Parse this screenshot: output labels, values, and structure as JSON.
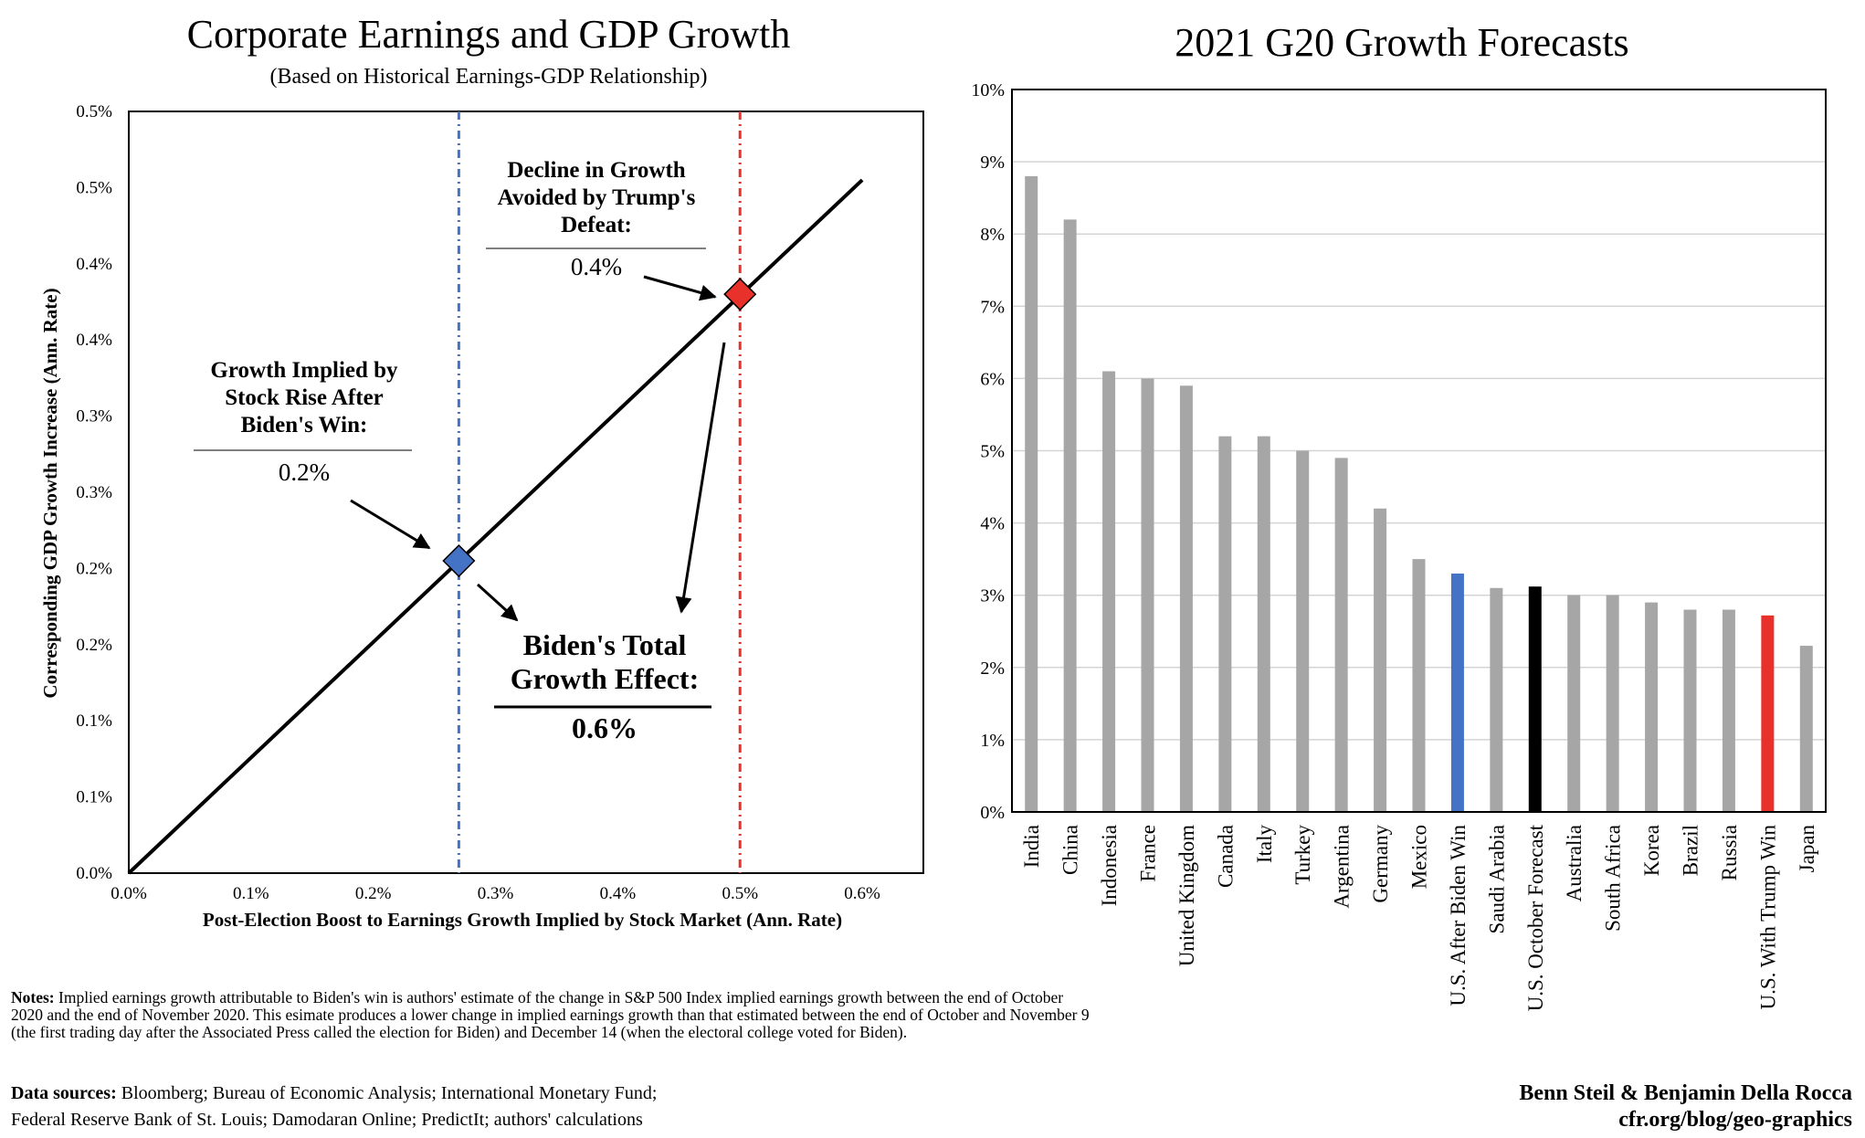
{
  "chart_data": [
    {
      "type": "line",
      "title": "Corporate Earnings and GDP Growth",
      "subtitle": "(Based on Historical Earnings-GDP Relationship)",
      "xlabel": "Post-Election Boost to Earnings Growth Implied by Stock Market (Ann. Rate)",
      "ylabel": "Corresponding GDP Growth Increase (Ann. Rate)",
      "xlim": [
        0,
        0.65
      ],
      "ylim": [
        0,
        0.5
      ],
      "x_ticks": [
        0,
        0.1,
        0.2,
        0.3,
        0.4,
        0.5,
        0.6
      ],
      "x_tick_labels": [
        "0.0%",
        "0.1%",
        "0.2%",
        "0.3%",
        "0.4%",
        "0.5%",
        "0.6%"
      ],
      "y_ticks": [
        0,
        0.05,
        0.1,
        0.15,
        0.2,
        0.25,
        0.3,
        0.35,
        0.4,
        0.45,
        0.5
      ],
      "y_tick_labels": [
        "0.0%",
        "0.1%",
        "0.1%",
        "0.2%",
        "0.2%",
        "0.3%",
        "0.3%",
        "0.4%",
        "0.4%",
        "0.5%",
        "0.5%"
      ],
      "series": [
        {
          "name": "Earnings-GDP relationship",
          "x": [
            0,
            0.6
          ],
          "y": [
            0,
            0.455
          ]
        }
      ],
      "reference_lines": [
        {
          "name": "Biden win",
          "x": 0.27,
          "color": "#4472c4"
        },
        {
          "name": "Trump defeat",
          "x": 0.5,
          "color": "#e8312a"
        }
      ],
      "markers": [
        {
          "name": "Biden",
          "x": 0.27,
          "y": 0.205,
          "color": "#4472c4"
        },
        {
          "name": "Trump",
          "x": 0.5,
          "y": 0.38,
          "color": "#e8312a"
        }
      ],
      "annotations": {
        "growth_implied": {
          "lines": [
            "Growth Implied by",
            "Stock Rise After",
            "Biden's Win:"
          ],
          "value": "0.2%"
        },
        "decline_avoided": {
          "lines": [
            "Decline in Growth",
            "Avoided by Trump's",
            "Defeat:"
          ],
          "value": "0.4%"
        },
        "total_effect": {
          "lines": [
            "Biden's Total",
            "Growth Effect:"
          ],
          "value": "0.6%"
        }
      }
    },
    {
      "type": "bar",
      "title": "2021 G20 Growth Forecasts",
      "ylim": [
        0,
        10
      ],
      "y_ticks": [
        0,
        1,
        2,
        3,
        4,
        5,
        6,
        7,
        8,
        9,
        10
      ],
      "y_tick_labels": [
        "0%",
        "1%",
        "2%",
        "3%",
        "4%",
        "5%",
        "6%",
        "7%",
        "8%",
        "9%",
        "10%"
      ],
      "categories": [
        "India",
        "China",
        "Indonesia",
        "France",
        "United Kingdom",
        "Canada",
        "Italy",
        "Turkey",
        "Argentina",
        "Germany",
        "Mexico",
        "U.S. After Biden Win",
        "Saudi Arabia",
        "U.S. October Forecast",
        "Australia",
        "South Africa",
        "Korea",
        "Brazil",
        "Russia",
        "U.S. With Trump Win",
        "Japan"
      ],
      "values": [
        8.8,
        8.2,
        6.1,
        6.0,
        5.9,
        5.2,
        5.2,
        5.0,
        4.9,
        4.2,
        3.5,
        3.3,
        3.1,
        3.12,
        3.0,
        3.0,
        2.9,
        2.8,
        2.8,
        2.72,
        2.3
      ],
      "colors": [
        "#a6a6a6",
        "#a6a6a6",
        "#a6a6a6",
        "#a6a6a6",
        "#a6a6a6",
        "#a6a6a6",
        "#a6a6a6",
        "#a6a6a6",
        "#a6a6a6",
        "#a6a6a6",
        "#a6a6a6",
        "#4472c4",
        "#a6a6a6",
        "#000000",
        "#a6a6a6",
        "#a6a6a6",
        "#a6a6a6",
        "#a6a6a6",
        "#a6a6a6",
        "#e8312a",
        "#a6a6a6"
      ]
    }
  ],
  "notes": {
    "label": "Notes:",
    "text": "Implied earnings growth attributable to Biden's win is authors' estimate of the change in S&P 500 Index implied earnings growth between the end of October 2020 and the end of November 2020. This esimate produces a lower change in implied earnings growth than that estimated between the end of October and November 9 (the first trading day after the Associated Press called the election for Biden) and December 14 (when the electoral college voted for Biden)."
  },
  "sources": {
    "label": "Data sources:",
    "line1": "Bloomberg; Bureau of Economic Analysis; International Monetary Fund;",
    "line2": "Federal Reserve Bank of St. Louis; Damodaran Online; PredictIt; authors' calculations"
  },
  "credit": {
    "authors": "Benn Steil & Benjamin Della Rocca",
    "url": "cfr.org/blog/geo-graphics"
  }
}
